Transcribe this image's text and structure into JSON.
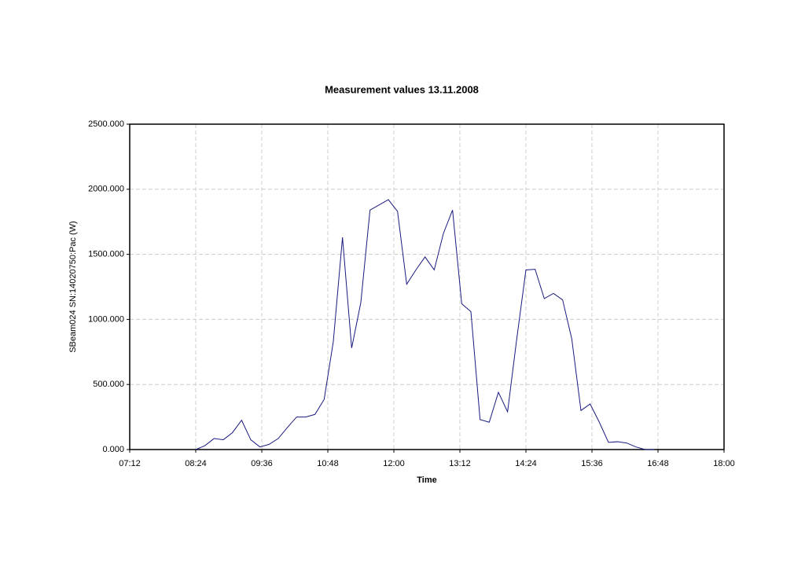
{
  "chart_data": {
    "type": "line",
    "title": "Measurement values 13.11.2008",
    "x_label": "Time",
    "y_label": "SBeam024 SN:14020750:Pac (W)",
    "x": [
      "08:24",
      "08:34",
      "08:44",
      "08:54",
      "09:04",
      "09:14",
      "09:24",
      "09:34",
      "09:44",
      "09:54",
      "10:04",
      "10:14",
      "10:24",
      "10:34",
      "10:44",
      "10:54",
      "11:04",
      "11:14",
      "11:24",
      "11:34",
      "11:44",
      "11:54",
      "12:04",
      "12:14",
      "12:24",
      "12:34",
      "12:44",
      "12:54",
      "13:04",
      "13:14",
      "13:24",
      "13:34",
      "13:44",
      "13:54",
      "14:04",
      "14:14",
      "14:24",
      "14:34",
      "14:44",
      "14:54",
      "15:04",
      "15:14",
      "15:24",
      "15:34",
      "15:44",
      "15:54",
      "16:04",
      "16:14",
      "16:24",
      "16:34",
      "16:44"
    ],
    "series": [
      {
        "name": "SBeam024 SN:14020750:Pac (W)",
        "color": "#1a1a80",
        "values": [
          0,
          30,
          85,
          75,
          130,
          225,
          75,
          20,
          40,
          85,
          170,
          250,
          250,
          270,
          385,
          830,
          1630,
          780,
          1130,
          1840,
          1880,
          1920,
          1830,
          1270,
          1380,
          1480,
          1380,
          1660,
          1840,
          1120,
          1060,
          230,
          210,
          440,
          290,
          850,
          1380,
          1385,
          1160,
          1200,
          1150,
          850,
          300,
          350,
          210,
          55,
          60,
          50,
          20,
          0,
          0
        ]
      }
    ],
    "xlim": [
      "07:12",
      "18:00"
    ],
    "xticks": [
      "07:12",
      "08:24",
      "09:36",
      "10:48",
      "12:00",
      "13:12",
      "14:24",
      "15:36",
      "16:48",
      "18:00"
    ],
    "ylim": [
      0,
      2500
    ],
    "yticks": [
      {
        "value": 0,
        "label": "0.000"
      },
      {
        "value": 500,
        "label": "500.000"
      },
      {
        "value": 1000,
        "label": "1000.000"
      },
      {
        "value": 1500,
        "label": "1500.000"
      },
      {
        "value": 2000,
        "label": "2000.000"
      },
      {
        "value": 2500,
        "label": "2500.000"
      }
    ],
    "grid": true
  }
}
